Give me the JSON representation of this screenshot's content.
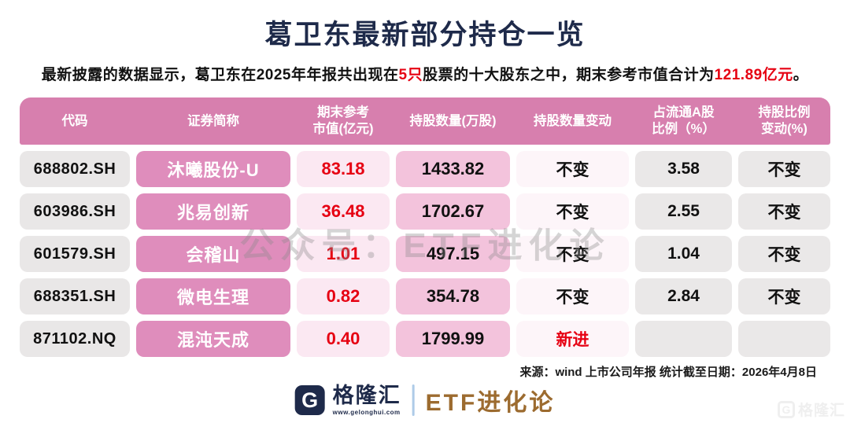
{
  "title": "葛卫东最新部分持仓一览",
  "subtitle": {
    "part1": "最新披露的数据显示，葛卫东在2025年年报共出现在",
    "highlight1": "5只",
    "part2": "股票的十大股东之中，期末参考市值合计为",
    "highlight2": "121.89亿元",
    "part3": "。"
  },
  "table": {
    "headers": [
      "代码",
      "证券简称",
      "期末参考\n市值(亿元)",
      "持股数量(万股)",
      "持股数量变动",
      "占流通A股\n比例（%）",
      "持股比例\n变动(%)"
    ],
    "rows": [
      {
        "code": "688802.SH",
        "name": "沐曦股份-U",
        "value": "83.18",
        "shares": "1433.82",
        "share_change": "不变",
        "ratio": "3.58",
        "ratio_change": "不变"
      },
      {
        "code": "603986.SH",
        "name": "兆易创新",
        "value": "36.48",
        "shares": "1702.67",
        "share_change": "不变",
        "ratio": "2.55",
        "ratio_change": "不变"
      },
      {
        "code": "601579.SH",
        "name": "会稽山",
        "value": "1.01",
        "shares": "497.15",
        "share_change": "不变",
        "ratio": "1.04",
        "ratio_change": "不变"
      },
      {
        "code": "688351.SH",
        "name": "微电生理",
        "value": "0.82",
        "shares": "354.78",
        "share_change": "不变",
        "ratio": "2.84",
        "ratio_change": "不变"
      },
      {
        "code": "871102.NQ",
        "name": "混沌天成",
        "value": "0.40",
        "shares": "1799.99",
        "share_change": "新进",
        "ratio": "",
        "ratio_change": ""
      }
    ]
  },
  "watermark": "公众号：ETF进化论",
  "source": "来源：wind 上市公司年报 统计截至日期：2026年4月8日",
  "footer": {
    "icon_letter": "G",
    "brand": "格隆汇",
    "brand_url": "www.gelonghui.com",
    "partner": "ETF进化论"
  },
  "corner_watermark": {
    "icon_letter": "G",
    "text": "格隆汇"
  },
  "colors": {
    "title_navy": "#1e2a4a",
    "highlight_red": "#e60012",
    "header_pink": "#d77fae",
    "name_cell_pink": "#df8dbc",
    "value_cell_pink": "#fbe8f2",
    "shares_cell_pink": "#f3c3dc",
    "neutral_gray": "#eae8e8",
    "partner_bronze": "#9c6b2f"
  }
}
